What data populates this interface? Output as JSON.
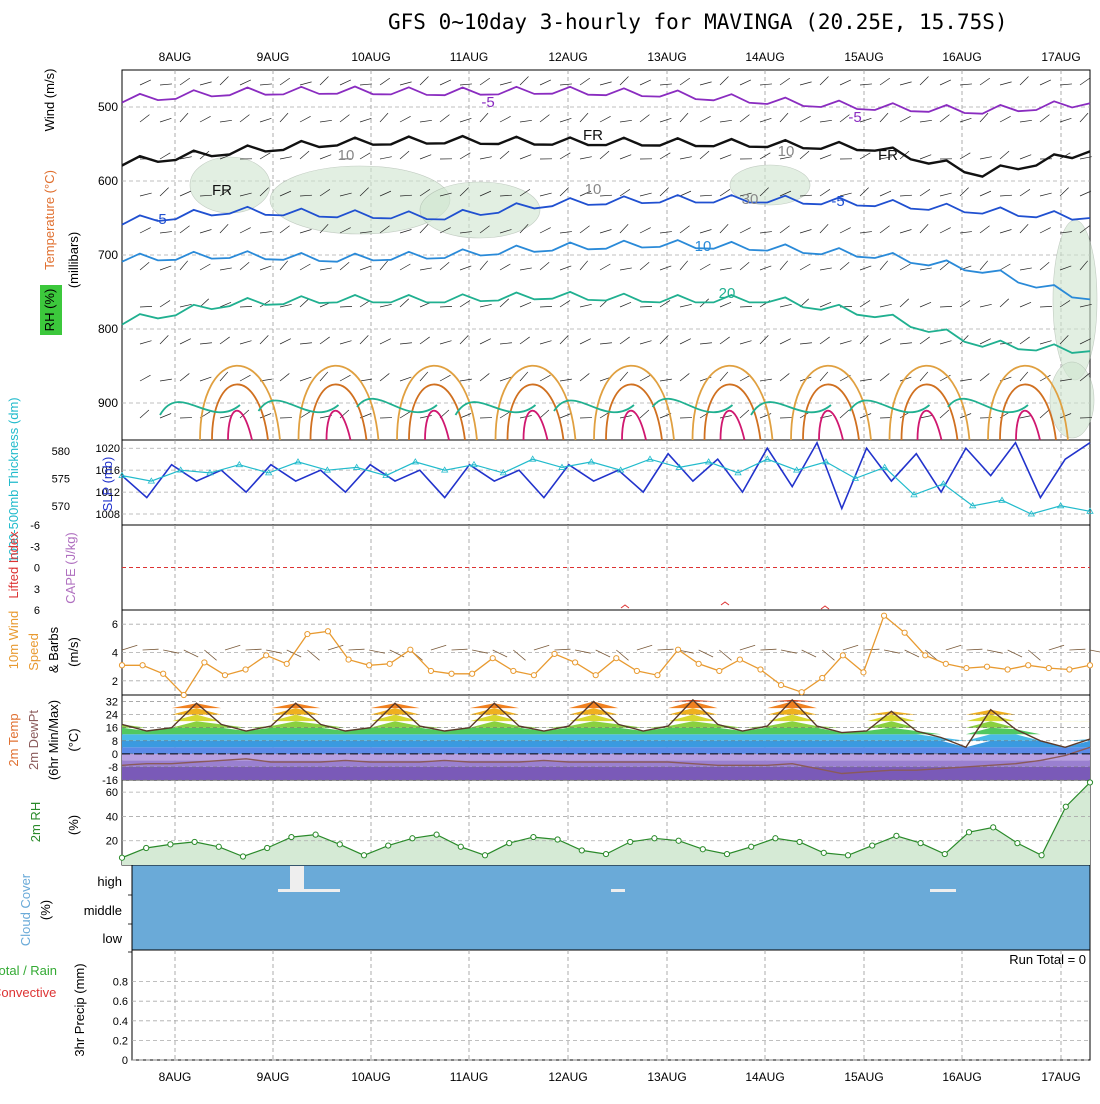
{
  "title": "GFS 0~10day 3-hourly for MAVINGA (20.25E, 15.75S)",
  "date_labels": [
    "8AUG",
    "9AUG",
    "10AUG",
    "11AUG",
    "12AUG",
    "13AUG",
    "14AUG",
    "15AUG",
    "16AUG",
    "17AUG"
  ],
  "colors": {
    "wind_label": "#000000",
    "temperature_label": "#e07030",
    "rh_label": "#33aa33",
    "thickness": "#22bbcc",
    "slp": "#2233cc",
    "cape": "#b070c0",
    "lifted_index": "#dd3333",
    "wind10_speed": "#e89a30",
    "wind10_barbs": "#7a5a3a",
    "rh2m": "#2a8a2a",
    "cloud": "#6aaad8",
    "precip_total": "#33aa33",
    "precip_convective": "#dd3333"
  },
  "chart_data": [
    {
      "panel": "upper_air",
      "type": "contour",
      "ylabel_parts": [
        "Wind (m/s)",
        "Temperature (°C)",
        "RH (%)"
      ],
      "ylabel_units": "(millibars)",
      "y_ticks": [
        "500",
        "600",
        "700",
        "800",
        "900"
      ],
      "ylim": [
        450,
        950
      ],
      "contour_labels": [
        "-5",
        "-5",
        "FR",
        "FR",
        "FR",
        "-5",
        "-5",
        "10",
        "10",
        "10",
        "30",
        "10",
        "20"
      ],
      "isotherms": [
        {
          "temp_c": -5,
          "approx_mb": [
            490,
            480,
            478,
            480,
            478,
            482,
            492,
            500,
            505,
            495
          ]
        },
        {
          "temp_c": 0,
          "approx_mb": [
            575,
            560,
            548,
            545,
            547,
            548,
            550,
            555,
            590,
            560
          ]
        },
        {
          "temp_c": 5,
          "approx_mb": [
            655,
            640,
            645,
            648,
            630,
            625,
            625,
            630,
            640,
            650
          ]
        },
        {
          "temp_c": 10,
          "approx_mb": [
            705,
            700,
            705,
            700,
            690,
            685,
            690,
            700,
            720,
            760
          ]
        },
        {
          "temp_c": 20,
          "approx_mb": [
            790,
            765,
            760,
            760,
            755,
            760,
            760,
            780,
            820,
            830
          ]
        }
      ]
    },
    {
      "panel": "thickness_slp",
      "type": "line",
      "ylabel_left": "1000-500mb Thickness (dm)",
      "ylabel_right": "SLP (mb)",
      "left_ticks": [
        "580",
        "575",
        "570"
      ],
      "right_ticks": [
        "1020",
        "1016",
        "1012",
        "1008"
      ],
      "series": [
        {
          "name": "SLP (mb)",
          "values": [
            1015,
            1011,
            1017,
            1014,
            1016,
            1012,
            1017,
            1014,
            1016,
            1012,
            1017,
            1014,
            1016,
            1011,
            1017,
            1014,
            1016,
            1011,
            1017,
            1014,
            1016,
            1012,
            1019,
            1014,
            1018,
            1012,
            1020,
            1013,
            1021,
            1009,
            1020,
            1014,
            1019,
            1012,
            1020,
            1015,
            1021,
            1011,
            1018,
            1021
          ]
        },
        {
          "name": "Thickness (dm)",
          "values": [
            575.5,
            574.5,
            576.5,
            576,
            577.5,
            576,
            578,
            576.5,
            577,
            575.5,
            578,
            576.5,
            577.5,
            576,
            578.5,
            577,
            578,
            576.5,
            578.5,
            577,
            578,
            576,
            578.5,
            576.5,
            578,
            575,
            577,
            572,
            574,
            570,
            571,
            568.5,
            570,
            569
          ]
        }
      ]
    },
    {
      "panel": "cape_li",
      "type": "line",
      "ylabel_left": "Lifted Index",
      "ylabel_right": "CAPE (J/kg)",
      "y_ticks": [
        "-6",
        "-3",
        "0",
        "3",
        "6"
      ],
      "ylim": [
        -6,
        6
      ],
      "zero_line": 0
    },
    {
      "panel": "wind10m",
      "type": "line",
      "ylabel": "10m Wind Speed & Barbs (m/s)",
      "y_ticks": [
        "2",
        "4",
        "6"
      ],
      "ylim": [
        1,
        7
      ],
      "series": [
        {
          "name": "Speed",
          "values": [
            3.1,
            3.1,
            2.5,
            1,
            3.3,
            2.4,
            2.8,
            3.8,
            3.2,
            5.3,
            5.5,
            3.5,
            3.1,
            3.2,
            4.2,
            2.7,
            2.5,
            2.5,
            3.6,
            2.7,
            2.4,
            3.9,
            3.3,
            2.4,
            3.6,
            2.7,
            2.4,
            4.2,
            3.2,
            2.7,
            3.5,
            2.8,
            1.7,
            1.2,
            2.2,
            3.8,
            2.6,
            6.6,
            5.4,
            3.8,
            3.2,
            2.9,
            3.0,
            2.8,
            3.1,
            2.9,
            2.8,
            3.1
          ]
        }
      ]
    },
    {
      "panel": "temp2m",
      "type": "area",
      "ylabel": "2m Temp 2m DewPt (6hr Min/Max) (°C)",
      "y_ticks": [
        "32",
        "24",
        "16",
        "8",
        "0",
        "-8",
        "-16"
      ],
      "ylim": [
        -16,
        36
      ],
      "series": [
        {
          "name": "2m Temp",
          "values": [
            18,
            14,
            16,
            31,
            18,
            14,
            17,
            31,
            18,
            14,
            16,
            31,
            17,
            14,
            16,
            31,
            17,
            14,
            17,
            32,
            18,
            14,
            17,
            33,
            18,
            14,
            17,
            33,
            17,
            13,
            14,
            26,
            14,
            10,
            4,
            27,
            15,
            8,
            4,
            9
          ]
        },
        {
          "name": "2m DewPt",
          "values": [
            -7,
            -6,
            -6,
            -5,
            -4,
            -3,
            -5,
            -5,
            -5,
            -4,
            -5,
            -5,
            -5,
            -4,
            -5,
            -5,
            -5,
            -4,
            -5,
            -5,
            -5,
            -5,
            -5,
            -6,
            -7,
            -7,
            -7,
            -6,
            -9,
            -12,
            -11,
            -10,
            -10,
            -9,
            -8,
            -7,
            -6,
            -4,
            -1,
            4
          ]
        }
      ]
    },
    {
      "panel": "rh2m",
      "type": "area",
      "ylabel": "2m RH (%)",
      "y_ticks": [
        "20",
        "40",
        "60"
      ],
      "ylim": [
        0,
        70
      ],
      "series": [
        {
          "name": "2m RH",
          "values": [
            6,
            14,
            17,
            19,
            15,
            7,
            14,
            23,
            25,
            17,
            8,
            16,
            22,
            25,
            15,
            8,
            18,
            23,
            21,
            12,
            9,
            19,
            22,
            20,
            13,
            9,
            15,
            22,
            19,
            10,
            8,
            16,
            24,
            18,
            9,
            27,
            31,
            18,
            8,
            48,
            68
          ]
        }
      ]
    },
    {
      "panel": "cloud_cover",
      "type": "bar",
      "ylabel": "Cloud Cover (%)",
      "levels": [
        "high",
        "middle",
        "low"
      ]
    },
    {
      "panel": "precip",
      "type": "bar",
      "ylabel_left": "Total / Rain",
      "ylabel_left2": "Convective",
      "ylabel_right": "3hr Precip (mm)",
      "y_ticks": [
        "0",
        "0.2",
        "0.4",
        "0.6",
        "0.8"
      ],
      "ylim": [
        0,
        1
      ],
      "run_total": "Run Total = 0"
    }
  ]
}
